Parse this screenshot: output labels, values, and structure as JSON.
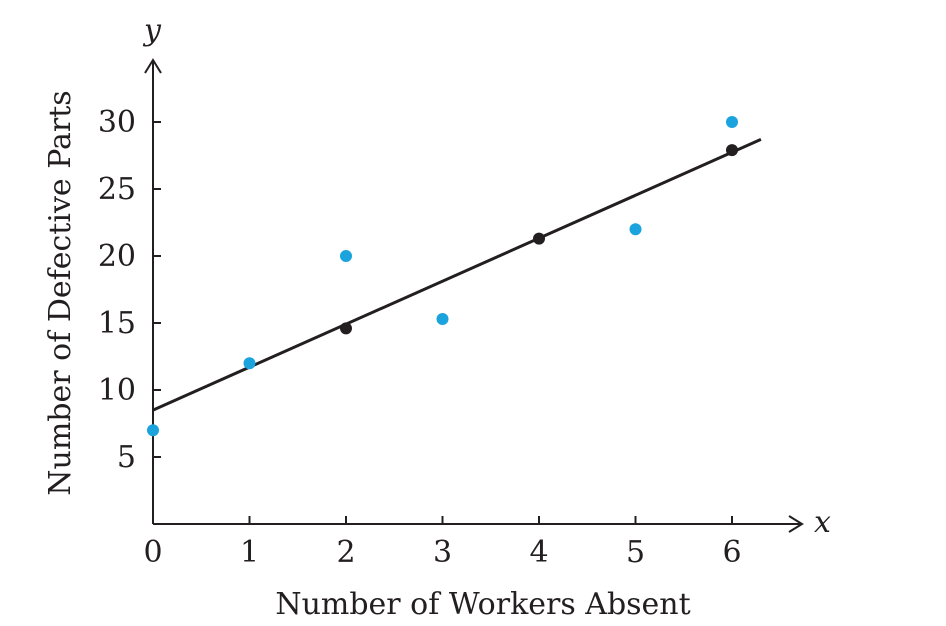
{
  "chart_data": {
    "type": "scatter",
    "xlabel": "Number of Workers Absent",
    "ylabel": "Number of Defective Parts",
    "x_var": "x",
    "y_var": "y",
    "xlim": [
      0,
      6.7
    ],
    "ylim": [
      0,
      34
    ],
    "x_ticks": [
      "0",
      "1",
      "2",
      "3",
      "4",
      "5",
      "6"
    ],
    "y_ticks": [
      "5",
      "10",
      "15",
      "20",
      "25",
      "30"
    ],
    "grid": false,
    "series": [
      {
        "type": "scatter",
        "color": "#1aa3dc",
        "points": [
          [
            0,
            7
          ],
          [
            1,
            12
          ],
          [
            2,
            20
          ],
          [
            3,
            15.3
          ],
          [
            5,
            22
          ],
          [
            6,
            30
          ]
        ]
      },
      {
        "type": "line",
        "color": "#231f20",
        "points": [
          [
            0,
            8.5
          ],
          [
            6.3,
            28.7
          ]
        ]
      },
      {
        "type": "scatter",
        "color": "#231f20",
        "points": [
          [
            2,
            14.6
          ],
          [
            4,
            21.3
          ],
          [
            6,
            27.9
          ]
        ]
      }
    ]
  }
}
